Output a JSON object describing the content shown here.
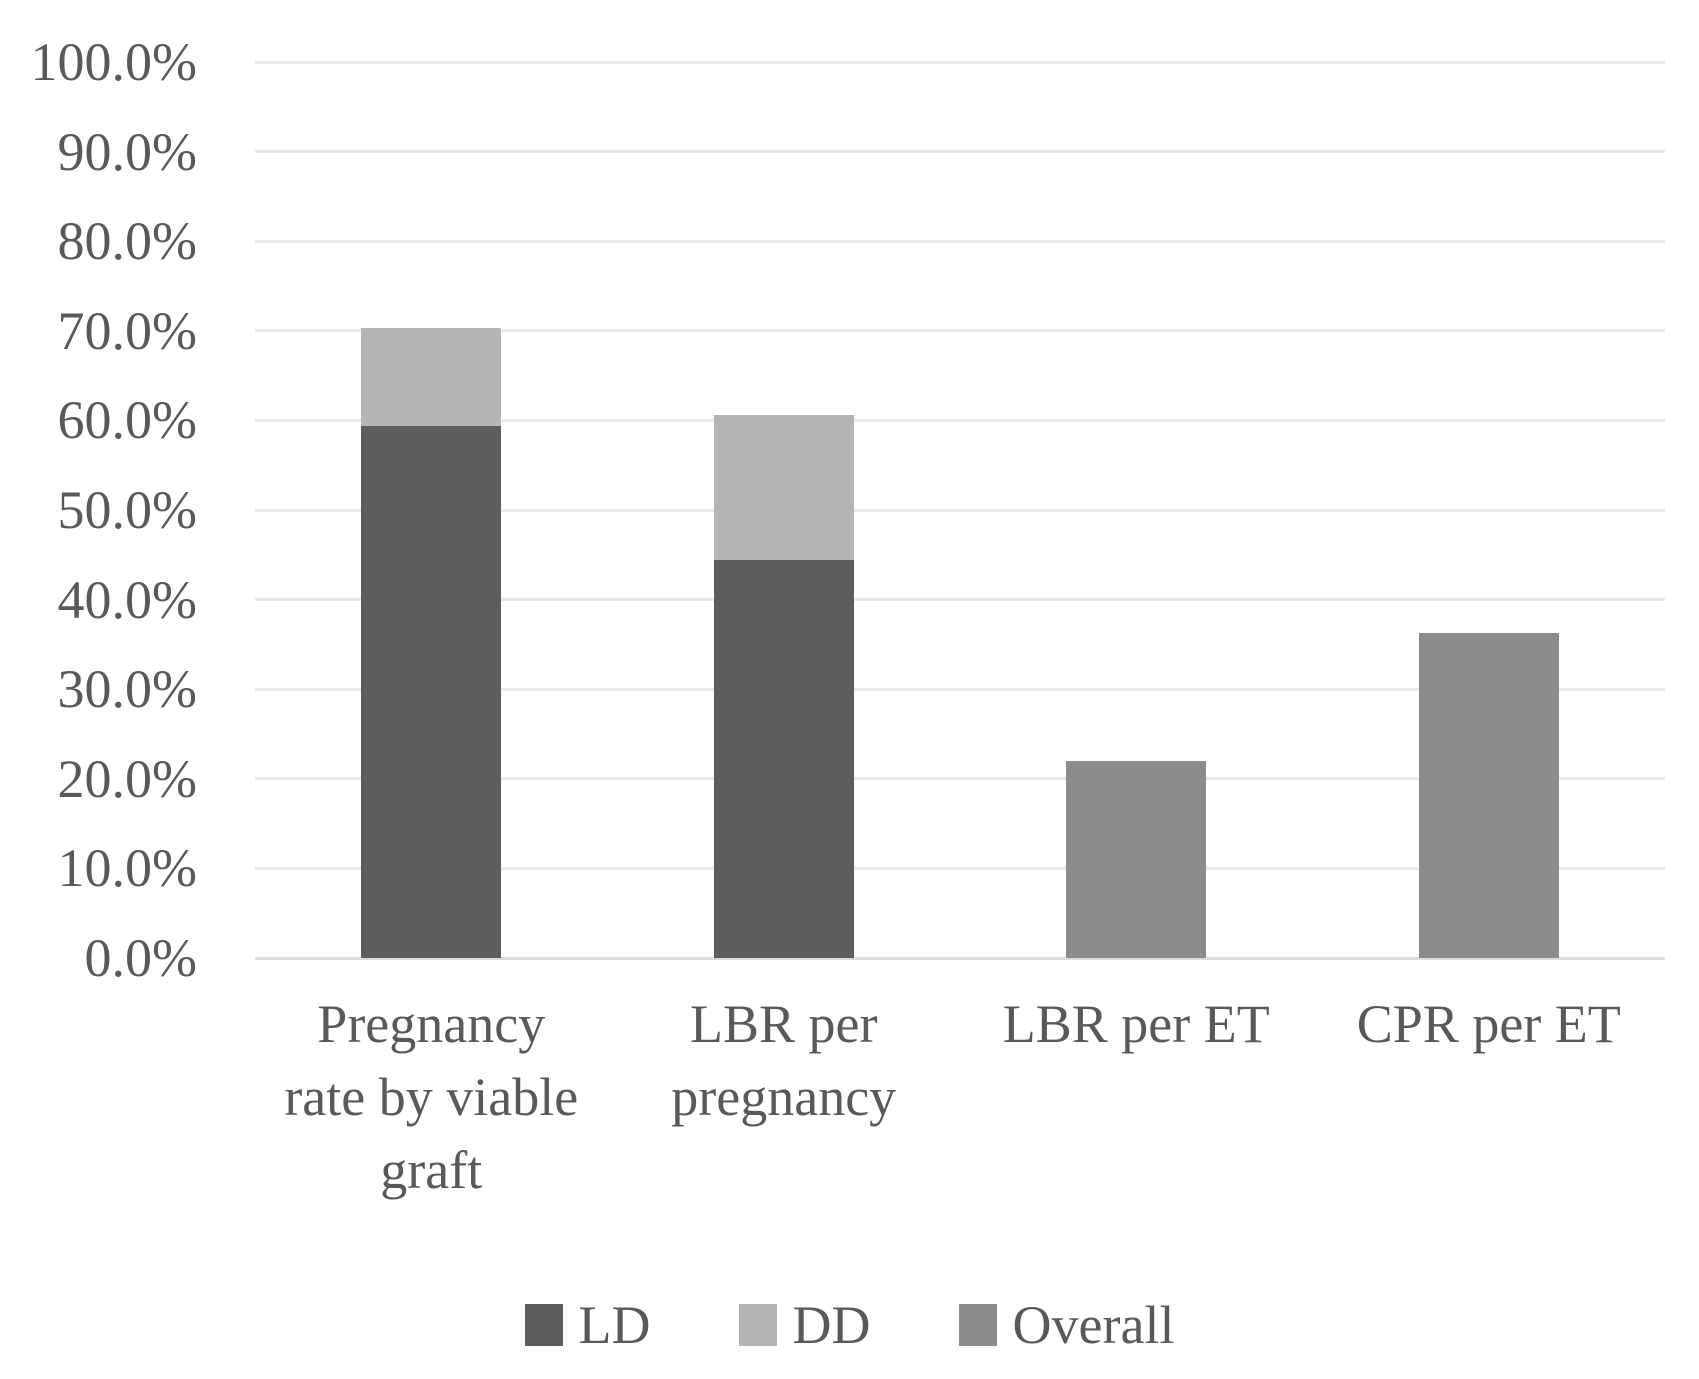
{
  "chart_data": {
    "type": "bar",
    "stacked": true,
    "title": "",
    "xlabel": "",
    "ylabel": "",
    "categories": [
      "Pregnancy rate by viable graft",
      "LBR per pregnancy",
      "LBR per ET",
      "CPR per ET"
    ],
    "series": [
      {
        "name": "LD",
        "color": "#5d5d5d",
        "values": [
          59.4,
          44.4,
          0,
          0
        ]
      },
      {
        "name": "DD",
        "color": "#b5b5b5",
        "values": [
          10.9,
          16.2,
          0,
          0
        ]
      },
      {
        "name": "Overall",
        "color": "#8c8c8c",
        "values": [
          0,
          0,
          22.0,
          36.3
        ]
      }
    ],
    "totals": [
      70.3,
      60.6,
      22.0,
      36.3
    ],
    "ylim": [
      0,
      100
    ],
    "ytick_step": 10,
    "ytick_labels": [
      "0.0%",
      "10.0%",
      "20.0%",
      "30.0%",
      "40.0%",
      "50.0%",
      "60.0%",
      "70.0%",
      "80.0%",
      "90.0%",
      "100.0%"
    ],
    "grid": true,
    "legend_position": "bottom",
    "legend_entries": [
      "LD",
      "DD",
      "Overall"
    ],
    "colors": {
      "axis_text": "#595959",
      "gridline": "#e9e9e9",
      "baseline": "#dcdcdc",
      "background": "#ffffff"
    }
  }
}
